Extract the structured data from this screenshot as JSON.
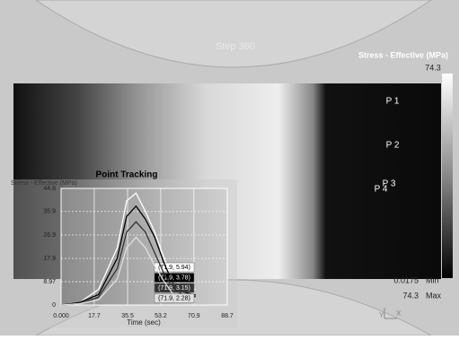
{
  "window": {
    "step_label": "Step  360",
    "colorbar": {
      "title": "Stress - Effective (MPa)",
      "top_label": "74.3",
      "min_value": "0.0175",
      "min_label": "Min",
      "max_value": "74.3",
      "max_label": "Max"
    },
    "points": [
      "P 1",
      "P 2",
      "P 3",
      "P 4"
    ],
    "axis_triad": [
      "Y",
      "X"
    ]
  },
  "chart_data": {
    "type": "line",
    "title": "Point Tracking",
    "y_label": "Stress - Effective (MPa)",
    "x_label": "Time (sec)",
    "x": [
      0,
      10,
      20,
      30,
      35,
      40,
      45,
      50,
      55,
      60,
      65,
      71.9
    ],
    "series": [
      {
        "name": "(71.9, 5.94)",
        "color": "#ffffff",
        "values": [
          0,
          1,
          6,
          22,
          40,
          43,
          36,
          28,
          18,
          10,
          7,
          5.94
        ]
      },
      {
        "name": "(71.9, 3.78)",
        "color": "#000000",
        "values": [
          0,
          1,
          4,
          18,
          34,
          38,
          33,
          26,
          16,
          8,
          5,
          3.78
        ]
      },
      {
        "name": "(71.9, 3.15)",
        "color": "#333333",
        "values": [
          0,
          0.5,
          3,
          14,
          28,
          32,
          28,
          20,
          12,
          6,
          4,
          3.15
        ]
      },
      {
        "name": "(71.9, 2.28)",
        "color": "#e0e0e0",
        "values": [
          0,
          0.5,
          2,
          10,
          22,
          26,
          22,
          15,
          9,
          4,
          3,
          2.28
        ]
      }
    ],
    "xlim": [
      0,
      88.7
    ],
    "ylim": [
      0,
      44.8
    ],
    "xticks": [
      {
        "value": 0,
        "label": "0.000"
      },
      17.7,
      35.5,
      53.2,
      70.9,
      88.7
    ],
    "yticks": [
      0,
      8.97,
      17.9,
      26.9,
      35.9,
      44.8
    ],
    "grid": true
  }
}
